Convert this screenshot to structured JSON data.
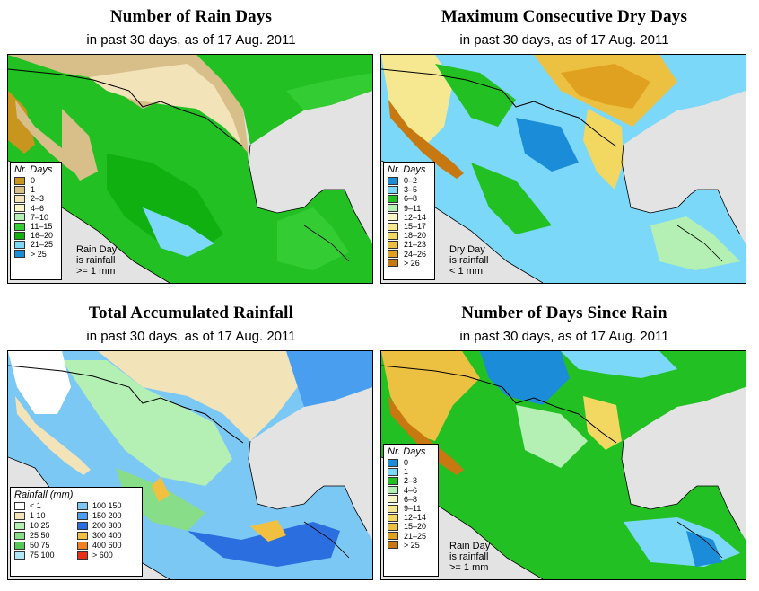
{
  "panels": {
    "rain_days": {
      "title": "Number of Rain Days",
      "subtitle": "in past 30 days, as of  17 Aug. 2011",
      "legend_title": "Nr. Days",
      "legend": [
        {
          "label": "0",
          "color": "#c8961e"
        },
        {
          "label": "1",
          "color": "#d8bf8a"
        },
        {
          "label": "2–3",
          "color": "#f2e3b8"
        },
        {
          "label": "4–6",
          "color": "#fbf6c8"
        },
        {
          "label": "7–10",
          "color": "#b4f0b4"
        },
        {
          "label": "11–15",
          "color": "#33cc33"
        },
        {
          "label": "16–20",
          "color": "#10b010"
        },
        {
          "label": "21–25",
          "color": "#7cd8f8"
        },
        {
          "label": "> 25",
          "color": "#1a8cd8"
        }
      ],
      "note": [
        "Rain Day",
        "is rainfall",
        ">= 1 mm"
      ]
    },
    "dry_days": {
      "title": "Maximum Consecutive Dry Days",
      "subtitle": "in past 30 days, as of  17 Aug. 2011",
      "legend_title": "Nr. Days",
      "legend": [
        {
          "label": "0–2",
          "color": "#1a8cd8"
        },
        {
          "label": "3–5",
          "color": "#7cd8f8"
        },
        {
          "label": "6–8",
          "color": "#22c022"
        },
        {
          "label": "9–11",
          "color": "#b4f0b4"
        },
        {
          "label": "12–14",
          "color": "#fbf6c8"
        },
        {
          "label": "15–17",
          "color": "#f6e890"
        },
        {
          "label": "18–20",
          "color": "#f2d860"
        },
        {
          "label": "21–23",
          "color": "#ecc040"
        },
        {
          "label": "24–26",
          "color": "#e0a020"
        },
        {
          "label": "> 26",
          "color": "#c87810"
        }
      ],
      "note": [
        "Dry Day",
        "is rainfall",
        "< 1 mm"
      ]
    },
    "accum_rain": {
      "title": "Total Accumulated Rainfall",
      "subtitle": "in past 30 days, as of  17 Aug. 2011",
      "legend_title": "Rainfall  (mm)",
      "legend": [
        {
          "label": "< 1",
          "color": "#ffffff"
        },
        {
          "label": "1    10",
          "color": "#f2e3b8"
        },
        {
          "label": "10    25",
          "color": "#b4f0b4"
        },
        {
          "label": "25    50",
          "color": "#88dd88"
        },
        {
          "label": "50    75",
          "color": "#55c855"
        },
        {
          "label": "75  100",
          "color": "#b0e8f8"
        },
        {
          "label": "100  150",
          "color": "#7cc8f4"
        },
        {
          "label": "150  200",
          "color": "#4a9ef0"
        },
        {
          "label": "200  300",
          "color": "#2a6ee0"
        },
        {
          "label": "300  400",
          "color": "#f2c040"
        },
        {
          "label": "400  600",
          "color": "#f08020"
        },
        {
          "label": "> 600",
          "color": "#e83018"
        }
      ]
    },
    "since_rain": {
      "title": "Number of Days Since Rain",
      "subtitle": "in past 30 days, as of  17 Aug. 2011",
      "legend_title": "Nr. Days",
      "legend": [
        {
          "label": "0",
          "color": "#1a8cd8"
        },
        {
          "label": "1",
          "color": "#7cd8f8"
        },
        {
          "label": "2–3",
          "color": "#22c022"
        },
        {
          "label": "4–6",
          "color": "#b4f0b4"
        },
        {
          "label": "6–8",
          "color": "#fbf6c8"
        },
        {
          "label": "9–11",
          "color": "#f6e890"
        },
        {
          "label": "12–14",
          "color": "#f2d860"
        },
        {
          "label": "15–20",
          "color": "#ecc040"
        },
        {
          "label": "21–25",
          "color": "#e0a020"
        },
        {
          "label": "> 25",
          "color": "#c87810"
        }
      ],
      "note": [
        "Rain Day",
        "is rainfall",
        ">= 1 mm"
      ]
    }
  }
}
